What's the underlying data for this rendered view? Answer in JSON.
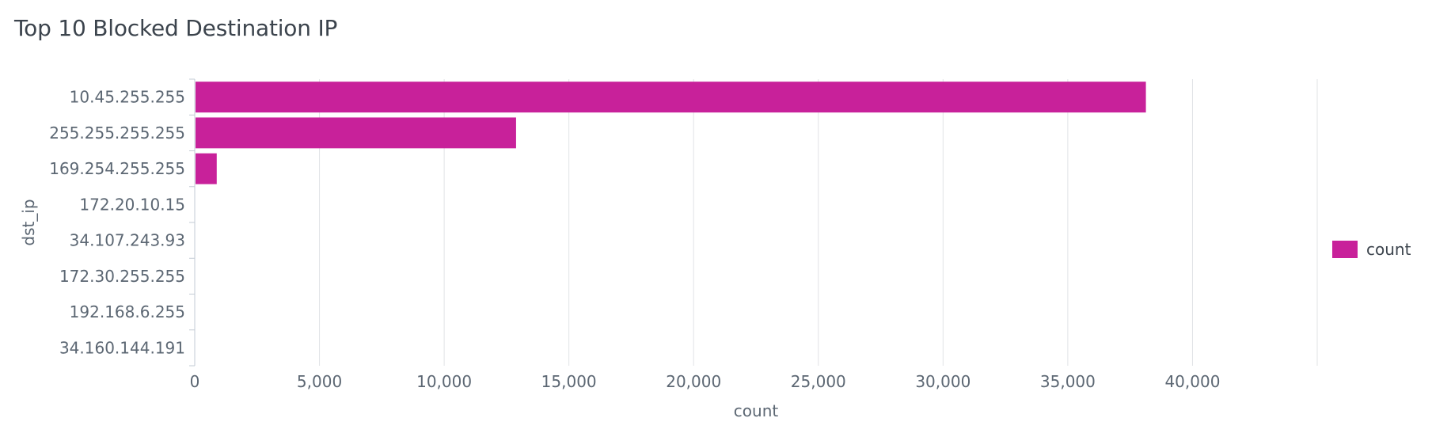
{
  "panel": {
    "title": "Top 10 Blocked Destination IP"
  },
  "chart_data": {
    "type": "bar",
    "orientation": "horizontal",
    "title": "Top 10 Blocked Destination IP",
    "xlabel": "count",
    "ylabel": "dst_ip",
    "categories": [
      "10.45.255.255",
      "255.255.255.255",
      "169.254.255.255",
      "172.20.10.15",
      "34.107.243.93",
      "172.30.255.255",
      "192.168.6.255",
      "34.160.144.191"
    ],
    "series": [
      {
        "name": "count",
        "color": "#c8219a",
        "values": [
          38100,
          12850,
          850,
          3,
          2,
          2,
          1,
          1
        ]
      }
    ],
    "xlim": [
      0,
      45000
    ],
    "xticks": [
      0,
      5000,
      10000,
      15000,
      20000,
      25000,
      30000,
      35000,
      40000
    ],
    "xtick_labels": [
      "0",
      "5,000",
      "10,000",
      "15,000",
      "20,000",
      "25,000",
      "30,000",
      "35,000",
      "40,000"
    ],
    "grid": true,
    "legend_position": "right"
  }
}
